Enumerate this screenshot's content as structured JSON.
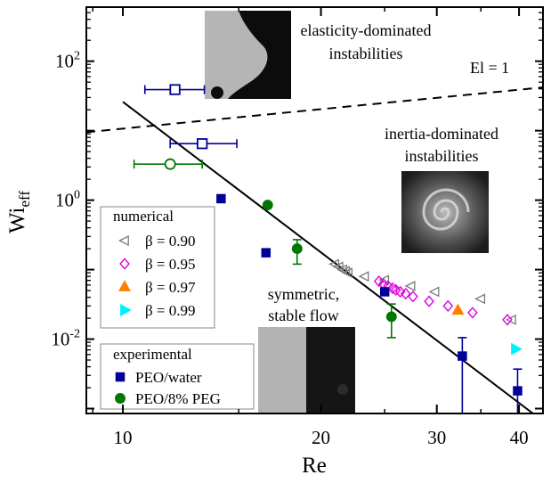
{
  "chart_data": {
    "type": "scatter",
    "x_scale": "log",
    "y_scale": "log",
    "xlim": [
      8.8,
      43.5
    ],
    "ylim": [
      0.00085,
      600
    ],
    "x_ticks": [
      {
        "value": 10,
        "label": "10"
      },
      {
        "value": 20,
        "label": "20"
      },
      {
        "value": 30,
        "label": "30"
      },
      {
        "value": 40,
        "label": "40"
      }
    ],
    "y_ticks": [
      {
        "value": 0.01,
        "base": "10",
        "exp": "-2"
      },
      {
        "value": 1,
        "base": "10",
        "exp": "0"
      },
      {
        "value": 100,
        "base": "10",
        "exp": "2"
      }
    ],
    "xlabel": "Re",
    "ylabel_main": "Wi",
    "ylabel_sub": "eff",
    "solid_line": {
      "x": [
        10,
        42
      ],
      "y": [
        26,
        0.00085
      ]
    },
    "dashed_line": {
      "label": "El = 1",
      "x": [
        8.8,
        43.5
      ],
      "y": [
        9.5,
        42
      ]
    },
    "annotations": {
      "elastic": [
        "elasticity-dominated",
        "instabilities"
      ],
      "inertia": [
        "inertia-dominated",
        "instabilities"
      ],
      "stable": [
        "symmetric,",
        "stable flow"
      ]
    },
    "legend": {
      "numerical_title": "numerical",
      "numerical": [
        {
          "label": "β = 0.90",
          "marker": "triangle-left-open",
          "color": "#7a7a7a"
        },
        {
          "label": "β = 0.95",
          "marker": "diamond-open",
          "color": "#e000e0"
        },
        {
          "label": "β = 0.97",
          "marker": "triangle-up-filled",
          "color": "#ff8000"
        },
        {
          "label": "β = 0.99",
          "marker": "triangle-right-filled",
          "color": "#00f0ff"
        }
      ],
      "experimental_title": "experimental",
      "experimental": [
        {
          "label": "PEO/water",
          "marker": "square-filled",
          "color": "#000099"
        },
        {
          "label": "PEO/8% PEG",
          "marker": "circle-filled",
          "color": "#007700"
        }
      ]
    },
    "series": [
      {
        "name": "β = 0.90",
        "marker": "triangle-left-open",
        "color": "#7a7a7a",
        "points": [
          [
            21.0,
            0.12
          ],
          [
            21.3,
            0.11
          ],
          [
            21.6,
            0.1
          ],
          [
            21.8,
            0.095
          ],
          [
            22.0,
            0.09
          ],
          [
            23.3,
            0.08
          ],
          [
            25.0,
            0.071
          ],
          [
            27.4,
            0.058
          ],
          [
            29.8,
            0.048
          ],
          [
            35.0,
            0.038
          ],
          [
            39.0,
            0.019
          ]
        ]
      },
      {
        "name": "β = 0.95",
        "marker": "diamond-open",
        "color": "#e000e0",
        "points": [
          [
            24.5,
            0.068
          ],
          [
            24.9,
            0.062
          ],
          [
            25.3,
            0.058
          ],
          [
            25.7,
            0.054
          ],
          [
            26.0,
            0.051
          ],
          [
            26.4,
            0.048
          ],
          [
            26.9,
            0.045
          ],
          [
            27.6,
            0.041
          ],
          [
            29.2,
            0.035
          ],
          [
            31.2,
            0.03
          ],
          [
            34.0,
            0.024
          ],
          [
            38.4,
            0.019
          ]
        ]
      },
      {
        "name": "β = 0.97",
        "marker": "triangle-up-filled",
        "color": "#ff8000",
        "points": [
          [
            32.3,
            0.026
          ]
        ]
      },
      {
        "name": "β = 0.99",
        "marker": "triangle-right-filled",
        "color": "#00f0ff",
        "points": [
          [
            39.5,
            0.0072
          ]
        ]
      },
      {
        "name": "PEO/water",
        "marker": "square-filled",
        "color": "#000099",
        "points": [
          [
            14.1,
            1.05
          ],
          [
            16.5,
            0.175
          ],
          [
            25.0,
            0.048
          ],
          [
            32.8,
            0.0057
          ],
          [
            39.8,
            0.0018
          ]
        ],
        "y_err": [
          null,
          null,
          null,
          [
            0.00085,
            0.0105
          ],
          [
            0.00085,
            0.0037
          ]
        ]
      },
      {
        "name": "PEO/8% PEG",
        "marker": "circle-filled",
        "color": "#007700",
        "points": [
          [
            16.6,
            0.85
          ],
          [
            18.4,
            0.2
          ],
          [
            25.6,
            0.021
          ]
        ],
        "y_err": [
          null,
          [
            0.12,
            0.27
          ],
          [
            0.0105,
            0.032
          ]
        ]
      },
      {
        "name": "PEO/water (open)",
        "marker": "square-open",
        "color": "#000099",
        "points": [
          [
            12.0,
            39
          ],
          [
            13.2,
            6.5
          ]
        ],
        "x_err": [
          [
            10.8,
            13.3
          ],
          [
            11.8,
            14.9
          ]
        ]
      },
      {
        "name": "PEO/8% PEG (open)",
        "marker": "circle-open",
        "color": "#007700",
        "points": [
          [
            11.8,
            3.3
          ]
        ],
        "x_err": [
          [
            10.4,
            13.2
          ]
        ]
      }
    ]
  }
}
